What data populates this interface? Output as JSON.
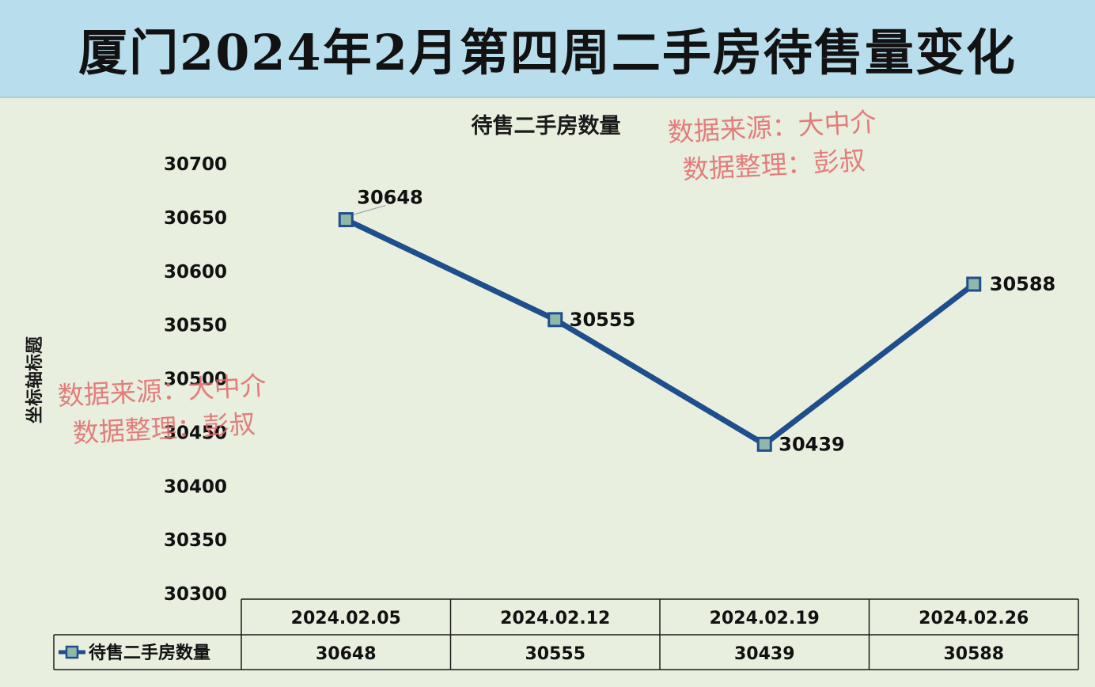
{
  "title": "厦门2024年2月第四周二手房待售量变化",
  "watermark": {
    "line1": "数据来源：大中介",
    "line2": "数据整理：彭叔"
  },
  "colors": {
    "banner": "#b8dded",
    "background": "#e9efdf",
    "series_line": "#1f4e8c",
    "watermark": "#e06b6b"
  },
  "chart_data": {
    "type": "line",
    "title": "待售二手房数量",
    "xlabel": "",
    "ylabel": "坐标轴标题",
    "categories": [
      "2024.02.05",
      "2024.02.12",
      "2024.02.19",
      "2024.02.26"
    ],
    "series": [
      {
        "name": "待售二手房数量",
        "values": [
          30648,
          30555,
          30439,
          30588
        ]
      }
    ],
    "ylim": [
      30300,
      30700
    ],
    "yticks": [
      30300,
      30350,
      30400,
      30450,
      30500,
      30550,
      30600,
      30650,
      30700
    ],
    "grid": false,
    "legend": "bottom-left (data table)",
    "data_table": true
  }
}
